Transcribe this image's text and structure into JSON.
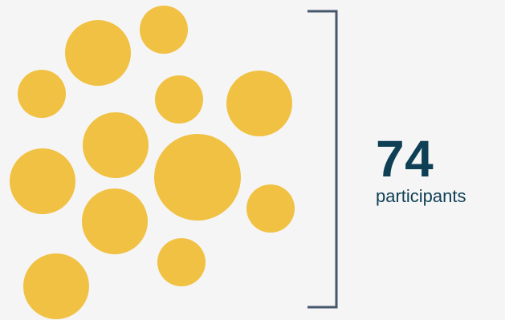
{
  "stat": {
    "value": "74",
    "label": "participants"
  },
  "colors": {
    "background": "#f5f5f5",
    "bubble": "#f0c143",
    "bracket": "#45566d",
    "text": "#0f3f55"
  }
}
